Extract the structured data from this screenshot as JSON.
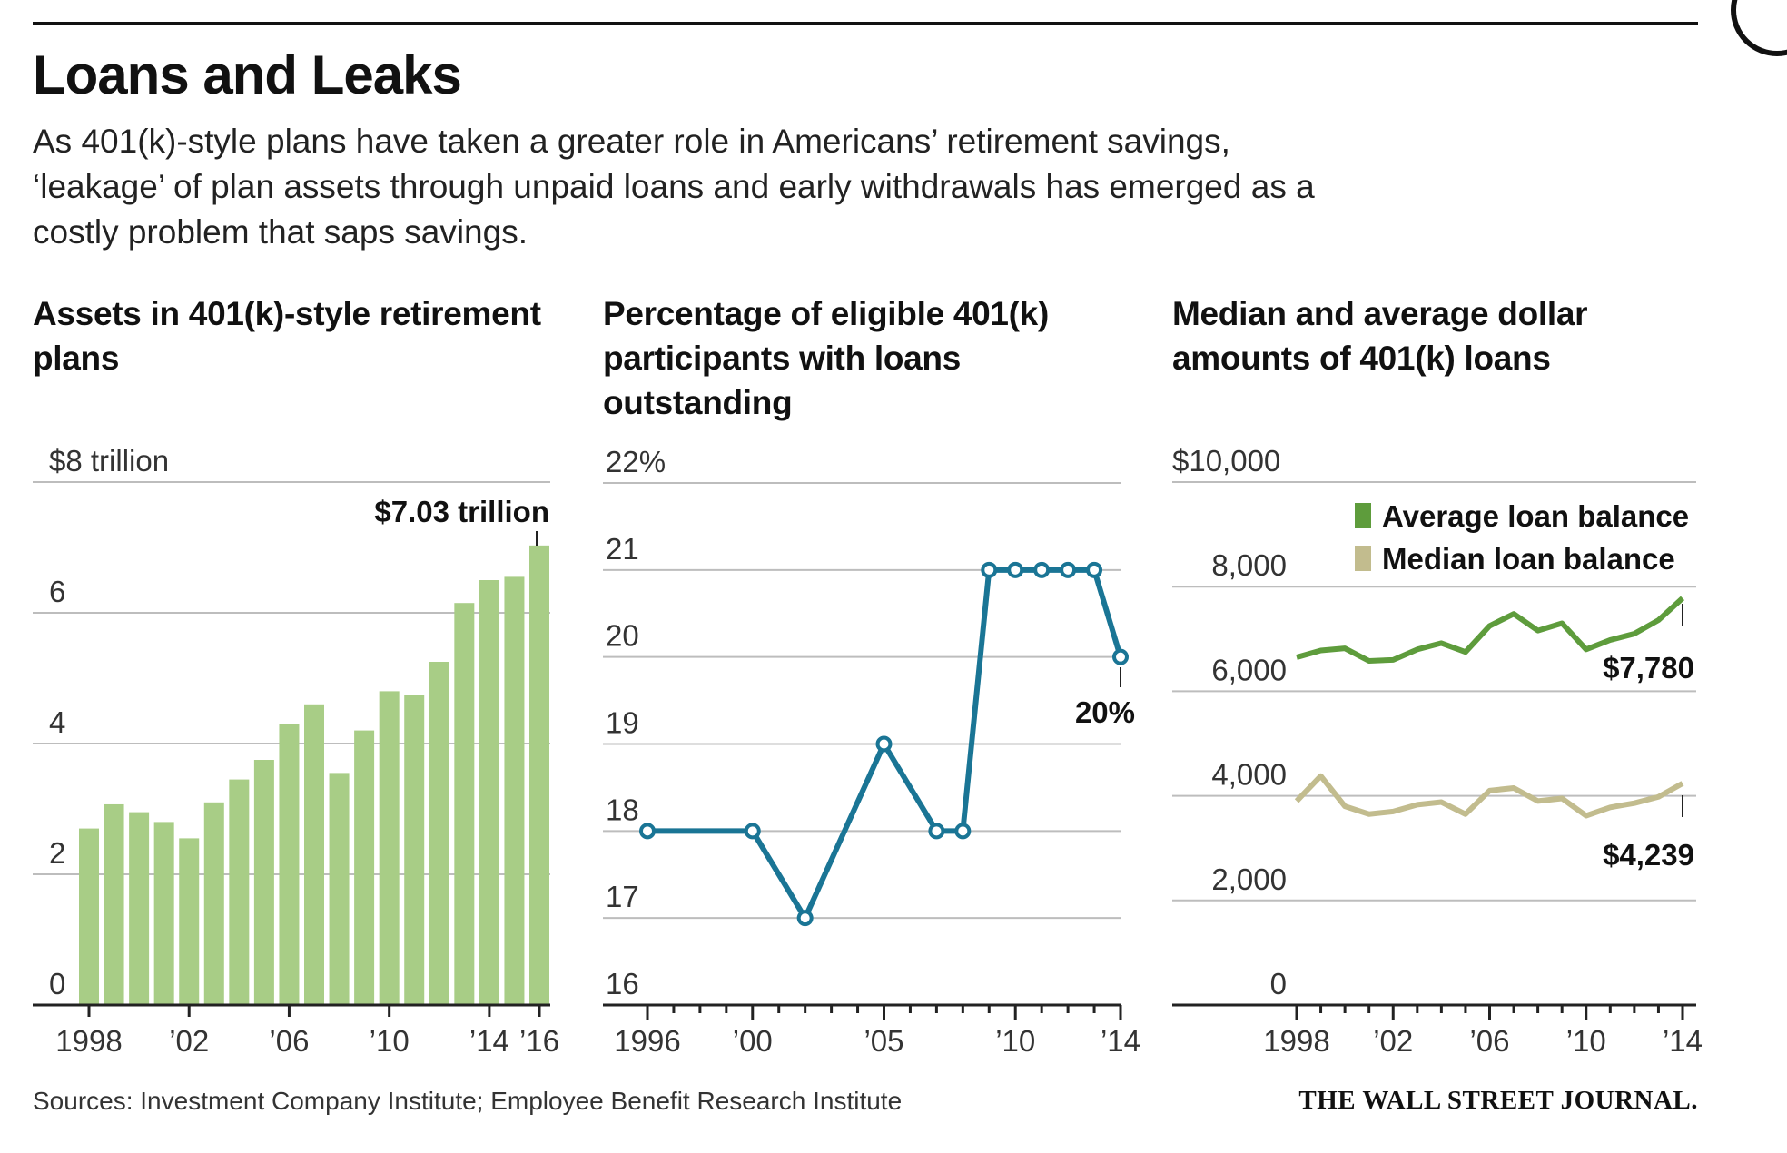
{
  "headline": "Loans and Leaks",
  "dek": "As 401(k)-style plans have taken a greater role in Americans’ retirement savings, ‘leakage’ of plan assets through unpaid loans and early withdrawals has emerged as a costly problem that saps savings.",
  "sources": "Sources: Investment Company Institute; Employee Benefit Research Institute",
  "publisher": "THE WALL STREET JOURNAL.",
  "colors": {
    "assets_bar": "#a8cd86",
    "loans_line": "#1a7595",
    "average_line": "#5e9c3c",
    "median_line": "#c2bc8e",
    "grid": "#bdbdbd",
    "axis": "#222222"
  },
  "chart_data": [
    {
      "type": "bar",
      "title": "Assets in 401(k)-style retirement plans",
      "x": [
        1998,
        1999,
        2000,
        2001,
        2002,
        2003,
        2004,
        2005,
        2006,
        2007,
        2008,
        2009,
        2010,
        2011,
        2012,
        2013,
        2014,
        2015,
        2016
      ],
      "values": [
        2.7,
        3.07,
        2.95,
        2.8,
        2.55,
        3.1,
        3.45,
        3.75,
        4.3,
        4.6,
        3.55,
        4.2,
        4.8,
        4.75,
        5.25,
        6.15,
        6.5,
        6.55,
        7.03
      ],
      "ylim": [
        0,
        8
      ],
      "yticks": [
        0,
        2,
        4,
        6,
        8
      ],
      "ytick_labels": [
        "0",
        "2",
        "4",
        "6",
        "$8 trillion"
      ],
      "xtick_labels": [
        "1998",
        "’02",
        "’06",
        "’10",
        "’14",
        "’16"
      ],
      "xtick_years": [
        1998,
        2002,
        2006,
        2010,
        2014,
        2016
      ],
      "callout": "$7.03 trillion",
      "grid": true
    },
    {
      "type": "line",
      "title": "Percentage of eligible 401(k) participants with loans outstanding",
      "x": [
        1996,
        2000,
        2002,
        2005,
        2007,
        2008,
        2009,
        2010,
        2011,
        2012,
        2013,
        2014
      ],
      "values": [
        18,
        18,
        17,
        19,
        18,
        18,
        21,
        21,
        21,
        21,
        21,
        20
      ],
      "ylim": [
        16,
        22
      ],
      "yticks": [
        16,
        17,
        18,
        19,
        20,
        21,
        22
      ],
      "ytick_labels": [
        "16",
        "17",
        "18",
        "19",
        "20",
        "21",
        "22%"
      ],
      "xtick_labels": [
        "1996",
        "’00",
        "’05",
        "’10",
        "’14"
      ],
      "xtick_years": [
        1996,
        2000,
        2005,
        2010,
        2014
      ],
      "callout": "20%",
      "grid": true
    },
    {
      "type": "line",
      "title": "Median and average dollar amounts of 401(k) loans",
      "x": [
        1998,
        1999,
        2000,
        2001,
        2002,
        2003,
        2004,
        2005,
        2006,
        2007,
        2008,
        2009,
        2010,
        2011,
        2012,
        2013,
        2014
      ],
      "series": [
        {
          "name": "Average loan balance",
          "values": [
            6650,
            6780,
            6820,
            6580,
            6600,
            6800,
            6920,
            6750,
            7250,
            7480,
            7160,
            7300,
            6800,
            6980,
            7100,
            7360,
            7780
          ],
          "callout": "$7,780"
        },
        {
          "name": "Median loan balance",
          "values": [
            3900,
            4380,
            3800,
            3650,
            3700,
            3830,
            3880,
            3650,
            4100,
            4150,
            3900,
            3950,
            3620,
            3780,
            3860,
            3980,
            4239
          ],
          "callout": "$4,239"
        }
      ],
      "ylim": [
        0,
        10000
      ],
      "yticks": [
        0,
        2000,
        4000,
        6000,
        8000,
        10000
      ],
      "ytick_labels": [
        "0",
        "2,000",
        "4,000",
        "6,000",
        "8,000",
        "$10,000"
      ],
      "xtick_labels": [
        "1998",
        "’02",
        "’06",
        "’10",
        "’14"
      ],
      "xtick_years": [
        1998,
        2002,
        2006,
        2010,
        2014
      ],
      "legend": "top-right",
      "grid": true
    }
  ]
}
